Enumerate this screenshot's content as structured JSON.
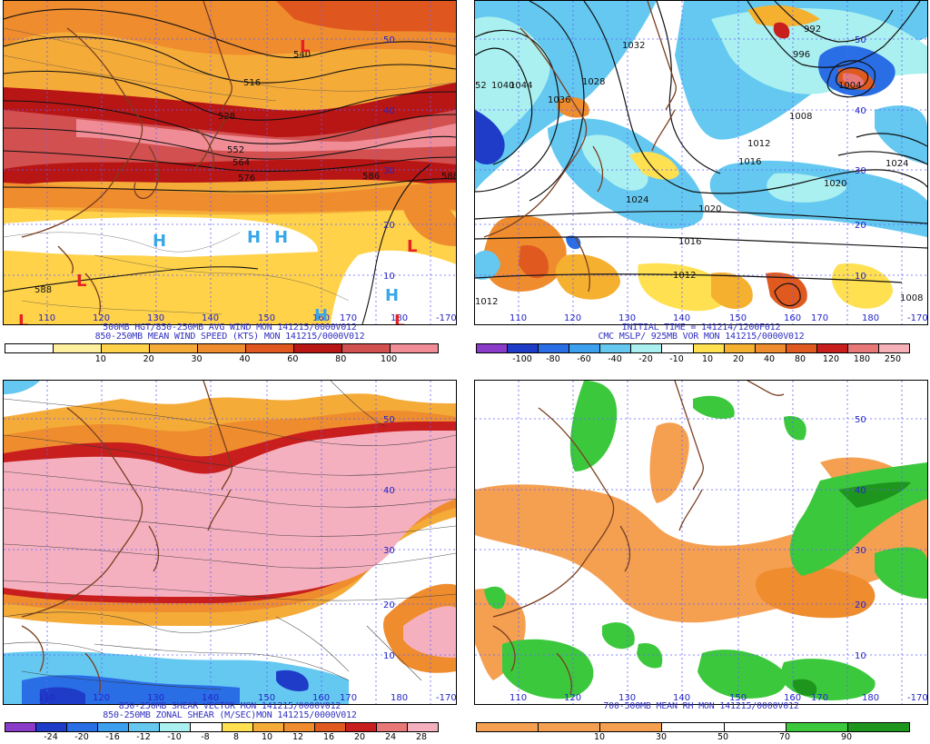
{
  "panels": [
    {
      "id": "p1",
      "caption": [
        "500MB HGT/850-250MB AVG WIND MON 141215/0000V012",
        "850-250MB MEAN WIND SPEED (KTS) MON 141215/0000V012"
      ],
      "colorbar": {
        "colors": [
          "#ffffff",
          "#fff0a0",
          "#ffd24a",
          "#f5ab38",
          "#ee8c2e",
          "#e0561f",
          "#b81515",
          "#d35050",
          "#f08c95"
        ],
        "labels": [
          "10",
          "20",
          "30",
          "40",
          "60",
          "80",
          "100"
        ]
      },
      "contour_labels": [
        "516",
        "528",
        "552",
        "564",
        "576",
        "586",
        "588",
        "588",
        "588",
        "540"
      ],
      "lat_labels": [
        "50",
        "40",
        "30",
        "20",
        "10"
      ],
      "lon_labels": [
        "110",
        "120",
        "130",
        "140",
        "150",
        "160",
        "170",
        "180",
        "-170"
      ],
      "highs": [
        "H",
        "H",
        "H",
        "H",
        "H"
      ],
      "lows": [
        "L",
        "L",
        "L",
        "L",
        "L"
      ]
    },
    {
      "id": "p2",
      "caption": [
        "INITIAL TIME = 141214/1200F012",
        "CMC MSLP/ 925MB VOR MON 141215/0000V012"
      ],
      "colorbar": {
        "colors": [
          "#8a3cc8",
          "#1e3cc8",
          "#2a6ee6",
          "#3ca0ee",
          "#64c8f0",
          "#aaf0f0",
          "#ffffff",
          "#ffe050",
          "#f5b030",
          "#ee8c2e",
          "#e05a20",
          "#c81e1e",
          "#e87878",
          "#f5b0b8"
        ],
        "labels": [
          "-100",
          "-80",
          "-60",
          "-40",
          "-20",
          "-10",
          "10",
          "20",
          "40",
          "80",
          "120",
          "180",
          "250"
        ]
      },
      "contour_labels": [
        "1032",
        "1040",
        "1044",
        "1036",
        "1028",
        "1024",
        "1020",
        "1016",
        "1012",
        "1008",
        "1004",
        "992",
        "996",
        "1012",
        "1024",
        "1020",
        "1016",
        "1012",
        "1008",
        "52"
      ],
      "lat_labels": [
        "50",
        "40",
        "30",
        "20",
        "10"
      ],
      "lon_labels": [
        "110",
        "120",
        "130",
        "140",
        "150",
        "160",
        "170",
        "180",
        "-170"
      ]
    },
    {
      "id": "p3",
      "caption": [
        "850-250MB SHEAR VECTOR MON 141215/0000V012",
        "850-250MB ZONAL SHEAR (M/SEC)MON 141215/0000V012"
      ],
      "colorbar": {
        "colors": [
          "#8a3cc8",
          "#1e3cc8",
          "#2a6ee6",
          "#3ca0ee",
          "#64c8f0",
          "#aaf0f0",
          "#ffffff",
          "#ffe050",
          "#f5ab38",
          "#ee8c2e",
          "#e05a20",
          "#c81e1e",
          "#e87878",
          "#f5b0c0"
        ],
        "labels": [
          "-24",
          "-20",
          "-16",
          "-12",
          "-10",
          "-8",
          "8",
          "10",
          "12",
          "16",
          "20",
          "24",
          "28"
        ]
      },
      "lat_labels": [
        "50",
        "40",
        "30",
        "20",
        "10"
      ],
      "lon_labels": [
        "110",
        "120",
        "130",
        "140",
        "150",
        "160",
        "170",
        "180",
        "-170"
      ]
    },
    {
      "id": "p4",
      "caption": [
        "700-500MB MEAN RH MON 141215/0000V012"
      ],
      "colorbar": {
        "colors": [
          "#f5a050",
          "#f5a050",
          "#f5a050",
          "#ffffff",
          "#ffffff",
          "#3cc83c",
          "#1e961e"
        ],
        "labels": [
          "10",
          "30",
          "50",
          "70",
          "90"
        ]
      },
      "lat_labels": [
        "50",
        "40",
        "30",
        "20",
        "10"
      ],
      "lon_labels": [
        "110",
        "120",
        "130",
        "140",
        "150",
        "160",
        "170",
        "180",
        "-170"
      ]
    }
  ]
}
